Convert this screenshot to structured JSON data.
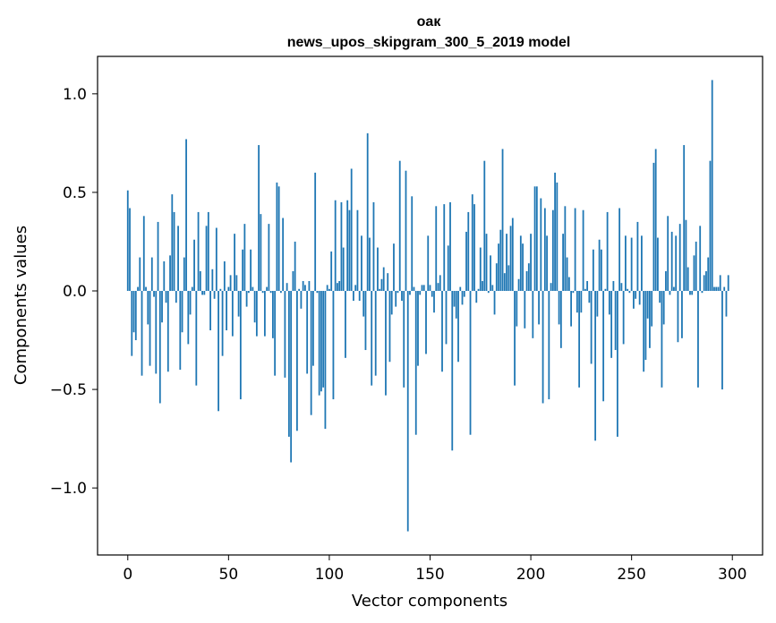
{
  "chart_data": {
    "type": "bar",
    "title": "оак",
    "subtitle": "news_upos_skipgram_300_5_2019 model",
    "xlabel": "Vector components",
    "ylabel": "Components values",
    "xlim": [
      -15,
      315
    ],
    "ylim": [
      -1.34,
      1.19
    ],
    "xticks": [
      0,
      50,
      100,
      150,
      200,
      250,
      300
    ],
    "yticks": [
      1.0,
      0.5,
      0.0,
      -0.5,
      -1.0
    ],
    "ytick_labels": [
      "1.0",
      "0.5",
      "0.0",
      "−0.5",
      "−1.0"
    ],
    "bar_color": "#1f77b4",
    "values": [
      0.51,
      0.42,
      -0.33,
      -0.21,
      -0.25,
      0.02,
      0.17,
      -0.43,
      0.38,
      0.02,
      -0.17,
      -0.38,
      0.17,
      -0.03,
      -0.42,
      0.35,
      -0.57,
      -0.16,
      0.15,
      -0.06,
      -0.41,
      0.18,
      0.49,
      0.4,
      -0.06,
      0.33,
      -0.4,
      -0.21,
      0.17,
      0.77,
      -0.27,
      -0.12,
      0.02,
      0.26,
      -0.48,
      0.4,
      0.1,
      -0.02,
      -0.02,
      0.33,
      0.4,
      -0.2,
      0.11,
      -0.04,
      0.32,
      -0.61,
      0.01,
      -0.33,
      0.15,
      -0.2,
      0.02,
      0.08,
      -0.23,
      0.29,
      0.08,
      -0.13,
      -0.55,
      0.21,
      0.34,
      -0.08,
      -0.01,
      0.21,
      0.02,
      -0.16,
      -0.23,
      0.74,
      0.39,
      -0.01,
      -0.23,
      0.02,
      0.34,
      -0.01,
      -0.24,
      -0.43,
      0.55,
      0.53,
      -0.01,
      0.37,
      -0.44,
      0.04,
      -0.74,
      -0.87,
      0.1,
      0.25,
      -0.71,
      0.01,
      -0.09,
      0.05,
      0.03,
      -0.42,
      0.05,
      -0.63,
      -0.38,
      0.6,
      -0.01,
      -0.53,
      -0.51,
      -0.49,
      -0.7,
      0.03,
      0.01,
      0.2,
      -0.55,
      0.46,
      0.04,
      0.05,
      0.45,
      0.22,
      -0.34,
      0.46,
      0.41,
      0.62,
      -0.05,
      0.03,
      0.41,
      -0.05,
      0.28,
      -0.13,
      -0.3,
      0.8,
      0.27,
      -0.48,
      0.45,
      -0.43,
      0.22,
      0.01,
      0.06,
      0.12,
      -0.53,
      0.09,
      -0.36,
      -0.12,
      0.24,
      -0.08,
      -0.01,
      0.66,
      -0.05,
      -0.49,
      0.61,
      -1.22,
      -0.02,
      0.48,
      0.02,
      -0.73,
      -0.38,
      -0.02,
      0.03,
      0.03,
      -0.32,
      0.28,
      0.03,
      -0.03,
      -0.11,
      0.43,
      0.04,
      0.08,
      -0.41,
      0.44,
      -0.27,
      0.23,
      0.45,
      -0.81,
      -0.08,
      -0.14,
      -0.36,
      0.02,
      -0.07,
      -0.03,
      0.3,
      0.4,
      -0.73,
      0.49,
      0.44,
      -0.06,
      0.01,
      0.22,
      0.05,
      0.66,
      0.29,
      -0.01,
      0.18,
      0.03,
      -0.12,
      0.14,
      0.24,
      0.31,
      0.72,
      0.09,
      0.29,
      0.13,
      0.33,
      0.37,
      -0.48,
      -0.18,
      0.06,
      0.28,
      0.24,
      -0.19,
      0.1,
      0.14,
      0.29,
      -0.24,
      0.53,
      0.53,
      -0.17,
      0.47,
      -0.57,
      0.42,
      0.28,
      -0.55,
      0.04,
      0.41,
      0.6,
      0.55,
      -0.17,
      -0.29,
      0.29,
      0.43,
      0.17,
      0.07,
      -0.18,
      -0.01,
      0.42,
      -0.11,
      -0.49,
      -0.11,
      0.41,
      0.01,
      0.05,
      -0.06,
      -0.37,
      0.21,
      -0.76,
      -0.13,
      0.26,
      0.21,
      -0.56,
      0.01,
      0.4,
      -0.12,
      -0.34,
      0.05,
      -0.3,
      -0.74,
      0.42,
      0.04,
      -0.27,
      0.28,
      0.01,
      -0.01,
      0.27,
      -0.09,
      -0.04,
      0.35,
      -0.07,
      0.28,
      -0.41,
      -0.35,
      -0.14,
      -0.29,
      -0.18,
      0.65,
      0.72,
      0.27,
      -0.06,
      -0.49,
      -0.17,
      0.1,
      0.38,
      -0.02,
      0.3,
      0.02,
      0.28,
      -0.26,
      0.34,
      -0.24,
      0.74,
      0.36,
      0.12,
      -0.02,
      -0.02,
      0.18,
      0.25,
      -0.49,
      0.33,
      -0.01,
      0.08,
      0.1,
      0.17,
      0.66,
      1.07,
      0.02,
      0.02,
      0.02,
      0.08,
      -0.5,
      0.02,
      -0.13,
      0.08
    ]
  }
}
